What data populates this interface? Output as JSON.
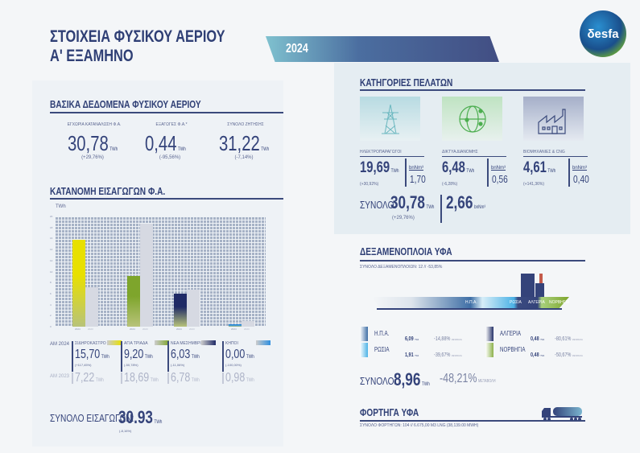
{
  "header": {
    "title_line1": "ΣΤΟΙΧΕΙΑ ΦΥΣΙΚΟΥ ΑΕΡΙΟΥ",
    "title_line2": "Α' ΕΞΑΜΗΝΟ",
    "year": "2024",
    "logo": "desfa"
  },
  "basic": {
    "title": "ΒΑΣΙΚΑ ΔΕΔΟΜΕΝΑ ΦΥΣΙΚΟΥ ΑΕΡΙΟΥ",
    "items": [
      {
        "label": "ΕΓΧΩΡΙΑ ΚΑΤΑΝΑΛΩΣΗ Φ.Α.",
        "value": "30,78",
        "unit": "TWh",
        "change": "(+29,76%)"
      },
      {
        "label": "ΕΞΑΓΩΓΕΣ Φ.Α.*",
        "value": "0,44",
        "unit": "TWh",
        "change": "(-95,56%)"
      },
      {
        "label": "ΣΥΝΟΛΟ ΖΗΤΗΣΗΣ",
        "value": "31,22",
        "unit": "TWh",
        "change": "(-7,14%)"
      }
    ]
  },
  "customers": {
    "title": "ΚΑΤΗΓΟΡΙΕΣ ΠΕΛΑΤΩΝ",
    "items": [
      {
        "label": "ΗΛΕΚΤΡΟΠΑΡΑΓΩΓΟΙ",
        "value": "19,69",
        "unit": "TWh",
        "change": "(+30,92%)",
        "bnm_label": "bnNm³",
        "bnm": "1,70",
        "icon": "power-pylon-icon"
      },
      {
        "label": "ΔΙΚΤΥΑ ΔΙΑΝΟΜΗΣ",
        "value": "6,48",
        "unit": "TWh",
        "change": "(-6,28%)",
        "bnm_label": "bnNm³",
        "bnm": "0,56",
        "icon": "globe-network-icon"
      },
      {
        "label": "ΒΙΟΜΗΧΑΝΙΕΣ & CNG",
        "value": "4,61",
        "unit": "TWh",
        "change": "(+141,36%)",
        "bnm_label": "bnNm³",
        "bnm": "0,40",
        "icon": "factory-icon"
      }
    ],
    "total_label": "ΣΥΝΟΛΟ:",
    "total_value": "30,78",
    "total_unit": "TWh",
    "total_change": "(+29,76%)",
    "total_bnm": "2,66",
    "total_bnm_unit": "bnNm³"
  },
  "imports": {
    "title": "ΚΑΤΑΝΟΜΗ ΕΙΣΑΓΩΓΩΝ Φ.Α.",
    "row_2024": "ΑΜ 2024",
    "row_2023": "ΑΜ 2023",
    "points": [
      {
        "label": "ΣΙΔΗΡΟΚΑΣΤΡΟ",
        "v2024": "15,70",
        "change": "(+117,45%)",
        "v2023": "7,22",
        "unit": "TWh",
        "color": "#e8e000"
      },
      {
        "label": "ΑΓΙΑ ΤΡΙΑΔΑ",
        "v2024": "9,20",
        "change": "(-50,78%)",
        "v2023": "18,69",
        "unit": "TWh",
        "color": "#7ea52c"
      },
      {
        "label": "ΝΕΑ ΜΕΣΗΜΒΡΙΑ",
        "v2024": "6,03",
        "change": "(-11,06%)",
        "v2023": "6,78",
        "unit": "TWh",
        "color": "#1f2a66"
      },
      {
        "label": "ΚΗΠΟΙ",
        "v2024": "0,00",
        "change": "(-100,00%)",
        "v2023": "0,98",
        "unit": "TWh",
        "color": "#2e8fe0"
      }
    ],
    "total_label": "ΣΥΝΟΛΟ ΕΙΣΑΓΩΓΩΝ:",
    "total_value": "30.93",
    "total_unit": "TWh",
    "total_change": "(-8,16%)"
  },
  "chart_data": {
    "type": "bar",
    "title": "",
    "ylabel": "TWh",
    "ylim": [
      0,
      20
    ],
    "categories": [
      "ΣΙΔΗΡΟΚΑΣΤΡΟ",
      "ΑΓΙΑ ΤΡΙΑΔΑ",
      "ΝΕΑ ΜΕΣΗΜΒΡΙΑ",
      "ΚΗΠΟΙ"
    ],
    "series": [
      {
        "name": "2024",
        "values": [
          15.7,
          9.2,
          6.03,
          0.0
        ]
      },
      {
        "name": "2023",
        "values": [
          7.22,
          18.69,
          6.78,
          0.98
        ]
      }
    ]
  },
  "lng": {
    "title": "ΔΕΞΑΜΕΝΟΠΛΟΙΑ ΥΦΑ",
    "subtitle": "ΣΥΝΟΛΟ ΔΕΞΑΜΕΝΟΠΛΟΙΩΝ: 12   //   -53,85%",
    "ship_labels": [
      "Η.Π.Α.",
      "ΡΩΣΙΑ",
      "ΑΛΓΕΡΙΑ",
      "ΝΟΡΒΗΓΙΑ"
    ],
    "origins": [
      {
        "name": "Η.Π.Α.",
        "value": "6,09",
        "unit": "TWh",
        "change": "-14,88%",
        "change_label": "ΜΕΤΑΒΟΛΗ",
        "color": "#3f6fa6"
      },
      {
        "name": "ΡΩΣΙΑ",
        "value": "1,91",
        "unit": "TWh",
        "change": "-39,67%",
        "change_label": "ΜΕΤΑΒΟΛΗ",
        "color": "#4cb2e6"
      },
      {
        "name": "ΑΛΓΕΡΙΑ",
        "value": "0,48",
        "unit": "TWh",
        "change": "-80,61%",
        "change_label": "ΜΕΤΑΒΟΛΗ",
        "color": "#253268"
      },
      {
        "name": "ΝΟΡΒΗΓΙΑ",
        "value": "0,48",
        "unit": "TWh",
        "change": "-50,67%",
        "change_label": "ΜΕΤΑΒΟΛΗ",
        "color": "#8bb04a"
      }
    ],
    "total_label": "ΣΥΝΟΛΟ:",
    "total_value": "8,96",
    "total_unit": "TWh",
    "total_change": "-48,21%",
    "total_change_label": "ΜΕΤΑΒΟΛΗ"
  },
  "trucks": {
    "title": "ΦΟΡΤΗΓΑ ΥΦΑ",
    "subtitle": "ΣΥΝΟΛΟ ΦΟΡΤΗΓΩΝ: 104  // 6.675,00 M3 LNG  (38,139.00 MWH)"
  }
}
